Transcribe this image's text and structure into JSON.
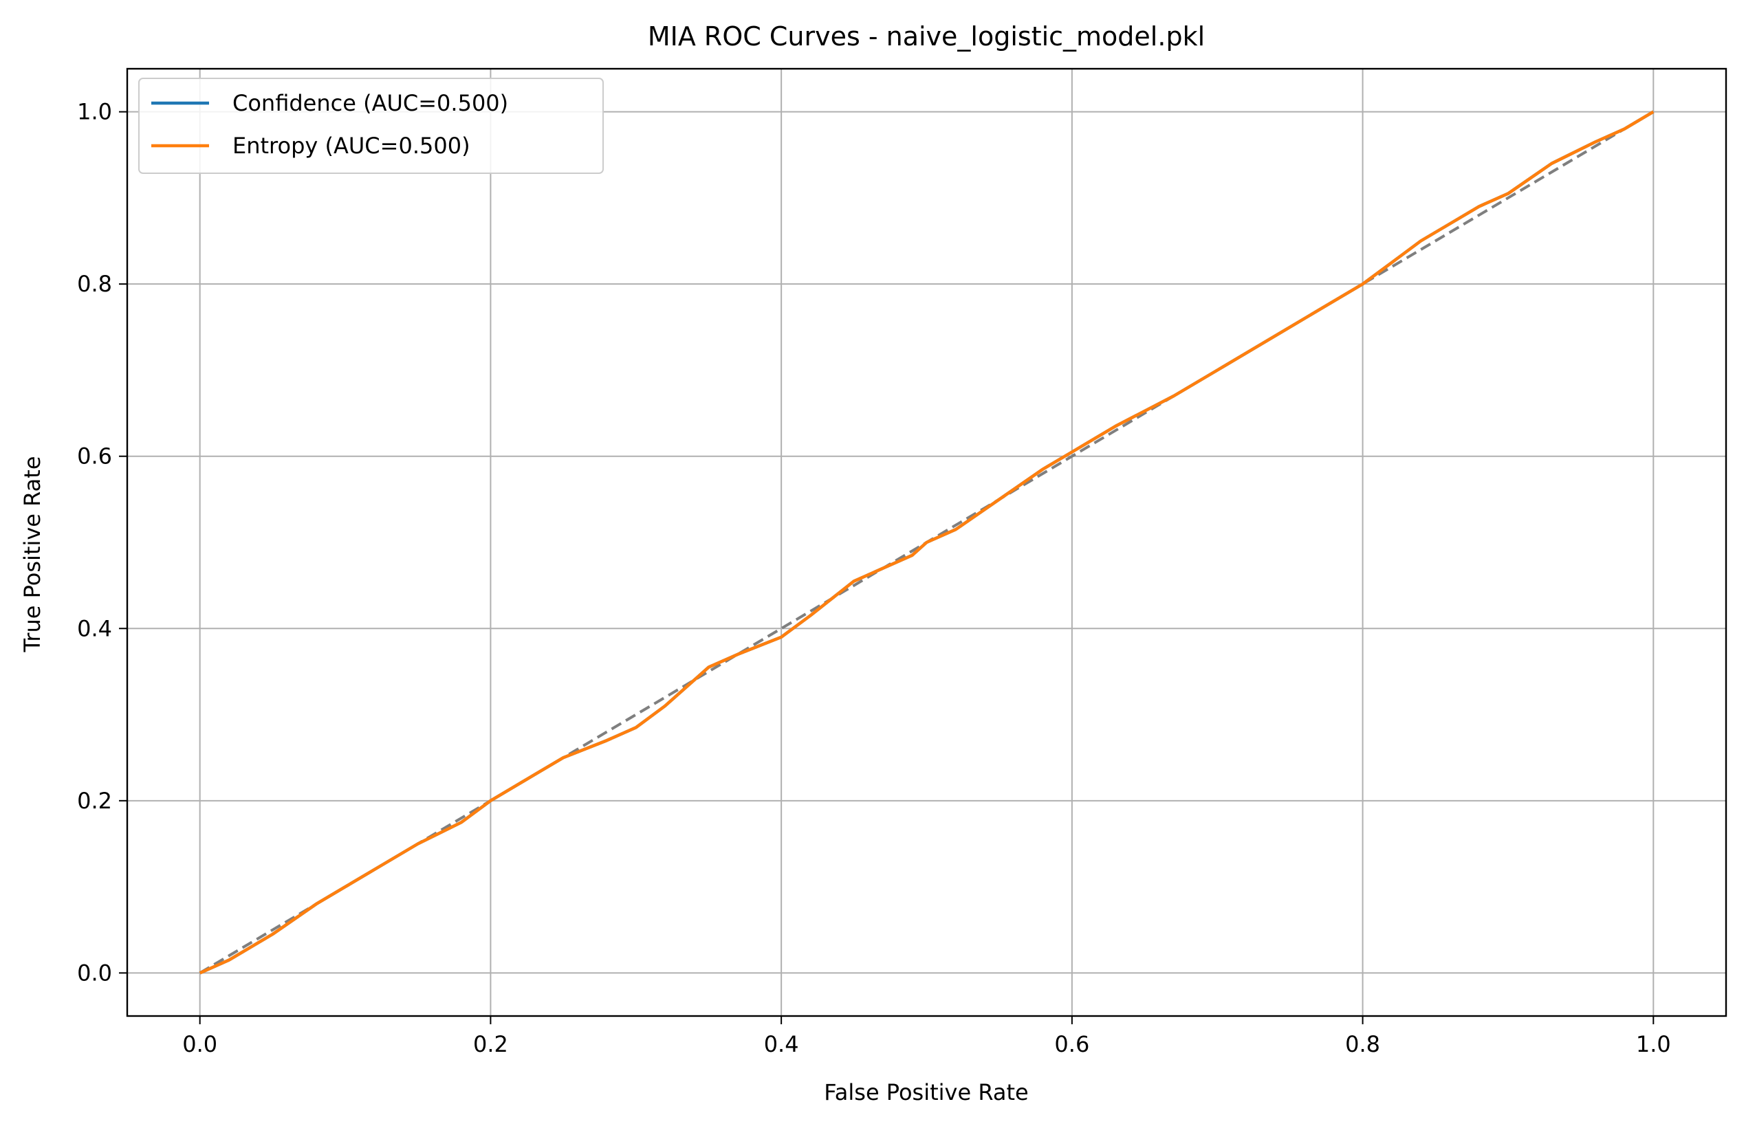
{
  "chart_data": {
    "type": "line",
    "title": "MIA ROC Curves - naive_logistic_model.pkl",
    "xlabel": "False Positive Rate",
    "ylabel": "True Positive Rate",
    "xlim": [
      -0.05,
      1.05
    ],
    "ylim": [
      -0.05,
      1.05
    ],
    "xticks": [
      0.0,
      0.2,
      0.4,
      0.6,
      0.8,
      1.0
    ],
    "xtick_labels": [
      "0.0",
      "0.2",
      "0.4",
      "0.6",
      "0.8",
      "1.0"
    ],
    "yticks": [
      0.0,
      0.2,
      0.4,
      0.6,
      0.8,
      1.0
    ],
    "ytick_labels": [
      "0.0",
      "0.2",
      "0.4",
      "0.6",
      "0.8",
      "1.0"
    ],
    "grid": true,
    "legend_position": "top-left",
    "series": [
      {
        "name": "Confidence (AUC=0.500)",
        "color": "#1f77b4",
        "x": [
          0.0,
          0.02,
          0.05,
          0.08,
          0.1,
          0.12,
          0.15,
          0.18,
          0.2,
          0.23,
          0.25,
          0.28,
          0.3,
          0.32,
          0.35,
          0.37,
          0.4,
          0.42,
          0.45,
          0.47,
          0.49,
          0.5,
          0.52,
          0.55,
          0.58,
          0.6,
          0.63,
          0.67,
          0.7,
          0.74,
          0.78,
          0.8,
          0.82,
          0.84,
          0.86,
          0.88,
          0.9,
          0.93,
          0.96,
          0.98,
          1.0
        ],
        "y": [
          0.0,
          0.015,
          0.045,
          0.08,
          0.1,
          0.12,
          0.15,
          0.175,
          0.2,
          0.23,
          0.25,
          0.27,
          0.285,
          0.31,
          0.355,
          0.37,
          0.39,
          0.415,
          0.455,
          0.47,
          0.485,
          0.5,
          0.515,
          0.55,
          0.585,
          0.605,
          0.635,
          0.67,
          0.7,
          0.74,
          0.78,
          0.8,
          0.825,
          0.85,
          0.87,
          0.89,
          0.905,
          0.94,
          0.965,
          0.98,
          1.0
        ]
      },
      {
        "name": "Entropy (AUC=0.500)",
        "color": "#ff7f0e",
        "x": [
          0.0,
          0.02,
          0.05,
          0.08,
          0.1,
          0.12,
          0.15,
          0.18,
          0.2,
          0.23,
          0.25,
          0.28,
          0.3,
          0.32,
          0.35,
          0.37,
          0.4,
          0.42,
          0.45,
          0.47,
          0.49,
          0.5,
          0.52,
          0.55,
          0.58,
          0.6,
          0.63,
          0.67,
          0.7,
          0.74,
          0.78,
          0.8,
          0.82,
          0.84,
          0.86,
          0.88,
          0.9,
          0.93,
          0.96,
          0.98,
          1.0
        ],
        "y": [
          0.0,
          0.015,
          0.045,
          0.08,
          0.1,
          0.12,
          0.15,
          0.175,
          0.2,
          0.23,
          0.25,
          0.27,
          0.285,
          0.31,
          0.355,
          0.37,
          0.39,
          0.415,
          0.455,
          0.47,
          0.485,
          0.5,
          0.515,
          0.55,
          0.585,
          0.605,
          0.635,
          0.67,
          0.7,
          0.74,
          0.78,
          0.8,
          0.825,
          0.85,
          0.87,
          0.89,
          0.905,
          0.94,
          0.965,
          0.98,
          1.0
        ]
      }
    ],
    "reference_line": {
      "x": [
        0.0,
        1.0
      ],
      "y": [
        0.0,
        1.0
      ],
      "color": "#7f7f7f",
      "style": "dashed"
    }
  }
}
